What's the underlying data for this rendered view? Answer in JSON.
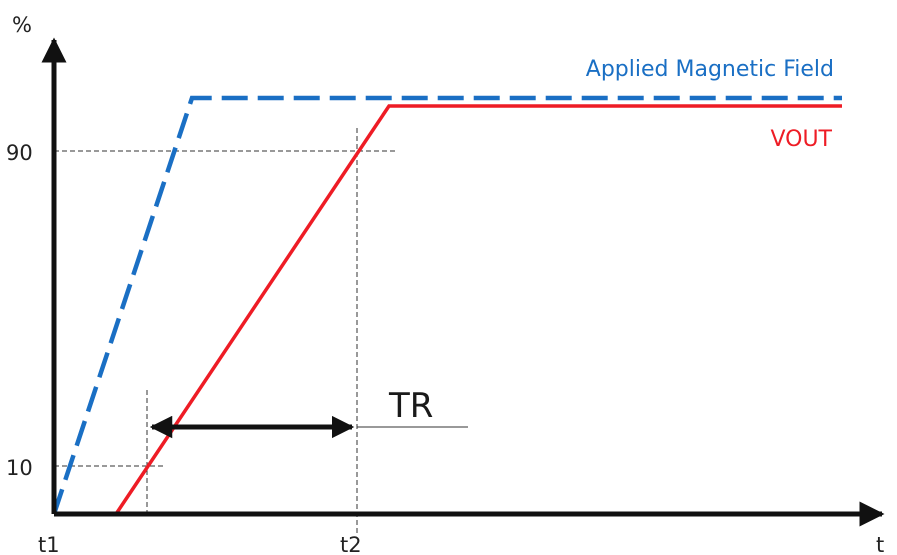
{
  "axes": {
    "y_label": "%",
    "x_label": "t",
    "y_ticks": [
      "90",
      "10"
    ],
    "x_ticks": [
      "t1",
      "t2"
    ]
  },
  "legend": {
    "applied_field": "Applied Magnetic Field",
    "vout": "VOUT"
  },
  "annotation": {
    "tr": "TR"
  },
  "colors": {
    "applied_field": "#1a6fc4",
    "vout": "#ee1c25",
    "axis": "#111111",
    "guide": "#333333"
  }
}
